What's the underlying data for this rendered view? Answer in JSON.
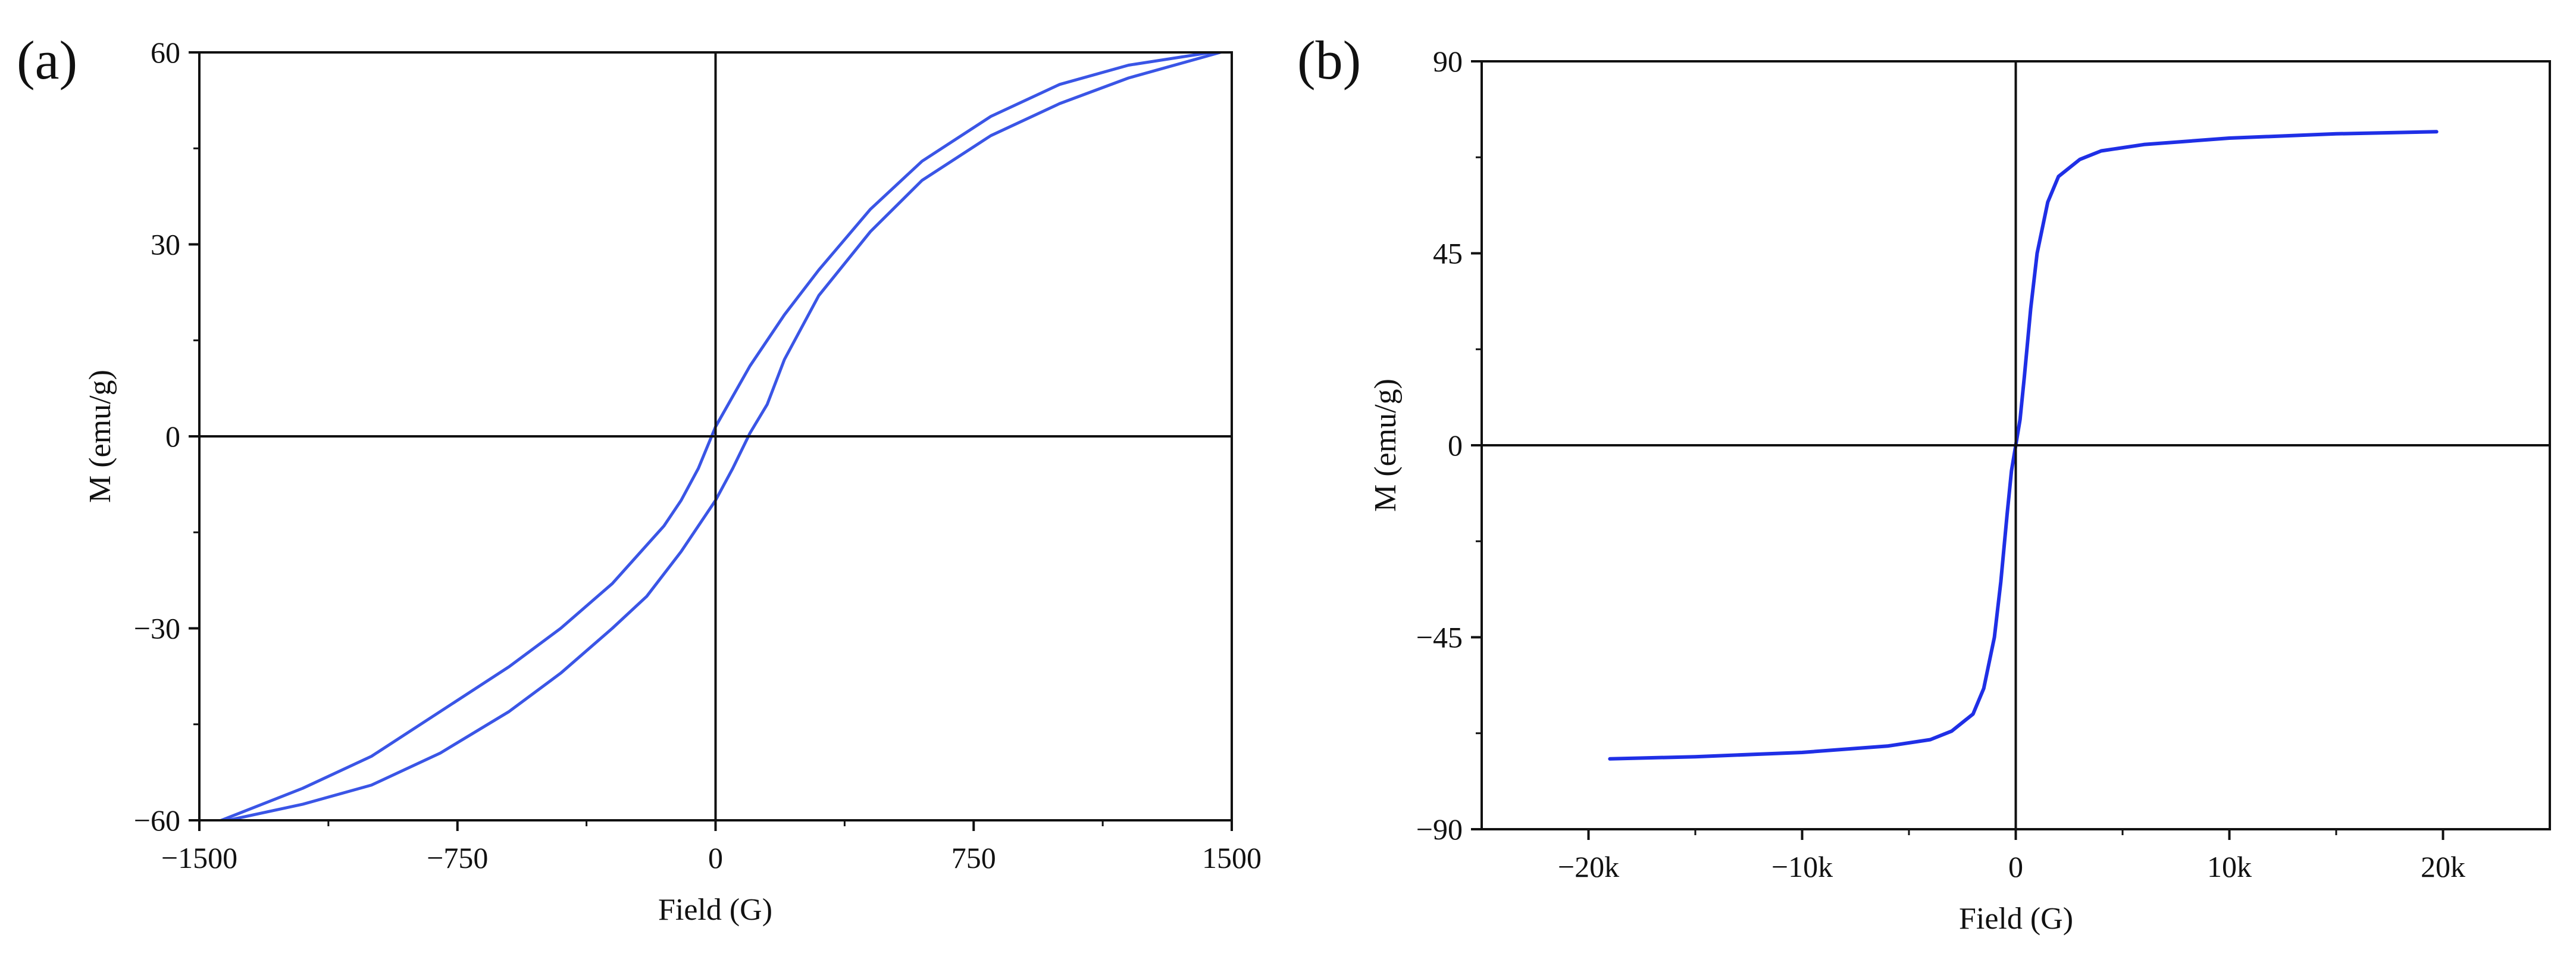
{
  "chart_data": [
    {
      "panel_label": "(a)",
      "type": "line",
      "xlabel": "Field (G)",
      "ylabel": "M (emu/g)",
      "xlim": [
        -1500,
        1500
      ],
      "ylim": [
        -60,
        60
      ],
      "x_ticks": [
        -1500,
        -750,
        0,
        750,
        1500
      ],
      "x_tick_labels": [
        "−1500",
        "−750",
        "0",
        "750",
        "1500"
      ],
      "y_ticks": [
        -60,
        -30,
        0,
        30,
        60
      ],
      "y_tick_labels": [
        "−60",
        "−30",
        "0",
        "30",
        "60"
      ],
      "grid": false,
      "zero_lines": true,
      "color": "#3a55e6",
      "series": [
        {
          "values_x": [
            -1460,
            -1200,
            -1000,
            -800,
            -600,
            -450,
            -300,
            -200,
            -150,
            -100,
            -50,
            0,
            100,
            200,
            300,
            450,
            600,
            800,
            1000,
            1200,
            1500
          ],
          "values_y": [
            -60.5,
            -55,
            -50,
            -43,
            -36,
            -30,
            -23,
            -17,
            -14,
            -10,
            -5,
            1.5,
            11,
            19,
            26,
            35.5,
            43,
            50,
            55,
            58,
            60.5
          ]
        },
        {
          "values_x": [
            -1460,
            -1200,
            -1000,
            -800,
            -600,
            -450,
            -300,
            -200,
            -100,
            0,
            50,
            100,
            150,
            200,
            300,
            450,
            600,
            800,
            1000,
            1200,
            1500
          ],
          "values_y": [
            -60.5,
            -57.5,
            -54.5,
            -49.5,
            -43,
            -37,
            -30,
            -25,
            -18,
            -10,
            -5,
            0.5,
            5,
            12,
            22,
            32,
            40,
            47,
            52,
            56,
            60.5
          ]
        }
      ]
    },
    {
      "panel_label": "(b)",
      "type": "line",
      "xlabel": "Field (G)",
      "ylabel": "M (emu/g)",
      "xlim": [
        -25000,
        25000
      ],
      "ylim": [
        -90,
        90
      ],
      "x_ticks": [
        -20000,
        -10000,
        0,
        10000,
        20000
      ],
      "x_tick_labels": [
        "−20k",
        "−10k",
        "0",
        "10k",
        "20k"
      ],
      "y_ticks": [
        -90,
        -45,
        0,
        45,
        90
      ],
      "y_tick_labels": [
        "−90",
        "−45",
        "0",
        "45",
        "90"
      ],
      "grid": false,
      "zero_lines": true,
      "color": "#1f2fe6",
      "series": [
        {
          "values_x": [
            -19000,
            -15000,
            -10000,
            -6000,
            -4000,
            -3000,
            -2000,
            -1500,
            -1000,
            -700,
            -400,
            -200,
            0,
            200,
            400,
            700,
            1000,
            1500,
            2000,
            3000,
            4000,
            6000,
            10000,
            15000,
            19700
          ],
          "values_y": [
            -73.5,
            -73,
            -72,
            -70.5,
            -69,
            -67,
            -63,
            -57,
            -45,
            -32,
            -16,
            -6,
            0,
            6,
            16,
            32,
            45,
            57,
            63,
            67,
            69,
            70.5,
            72,
            73,
            73.5
          ]
        }
      ]
    }
  ]
}
